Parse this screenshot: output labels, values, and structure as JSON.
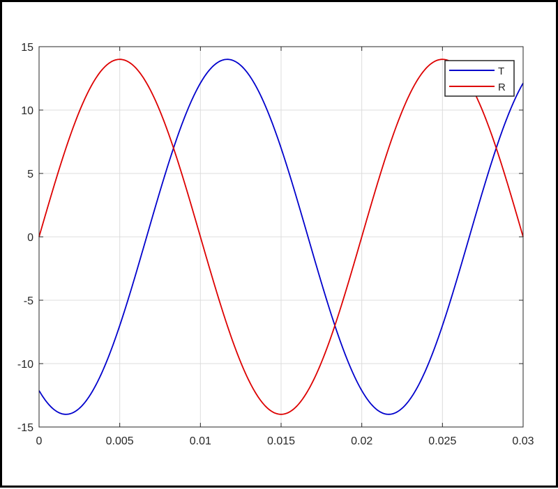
{
  "chart_data": {
    "type": "line",
    "title": "",
    "xlabel": "",
    "ylabel": "",
    "xlim": [
      0,
      0.03
    ],
    "ylim": [
      -15,
      15
    ],
    "xticks": [
      0,
      0.005,
      0.01,
      0.015,
      0.02,
      0.025,
      0.03
    ],
    "xtick_labels": [
      "0",
      "0.005",
      "0.01",
      "0.015",
      "0.02",
      "0.025",
      "0.03"
    ],
    "yticks": [
      15,
      10,
      5,
      0,
      -5,
      -10,
      -15
    ],
    "ytick_labels": [
      "15",
      "10",
      "5",
      "0",
      "-5",
      "-10",
      "-15"
    ],
    "grid": true,
    "legend_position": "top-right",
    "series": [
      {
        "name": "T",
        "color": "#0000cc",
        "function": "14*sin(100*pi*x - pi*2/3)",
        "amplitude": 14,
        "frequency_hz": 50,
        "phase_deg": -120
      },
      {
        "name": "R",
        "color": "#dd0000",
        "function": "14*sin(100*pi*x)",
        "amplitude": 14,
        "frequency_hz": 50,
        "phase_deg": 0
      }
    ]
  }
}
